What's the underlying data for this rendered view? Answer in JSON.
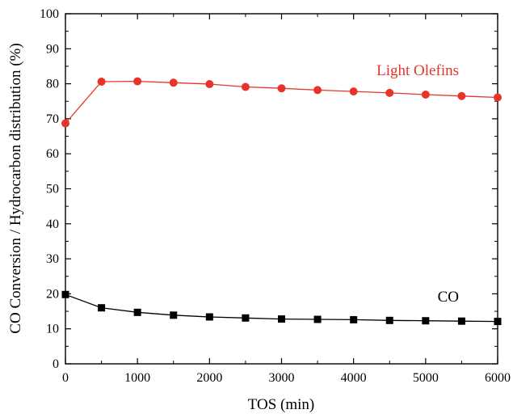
{
  "chart_data": {
    "type": "line",
    "title": "",
    "xlabel": "TOS (min)",
    "ylabel": "CO Conversion / Hydrocarbon distribution (%)",
    "xlim": [
      0,
      6000
    ],
    "ylim": [
      0,
      100
    ],
    "xticks": [
      0,
      1000,
      2000,
      3000,
      4000,
      5000,
      6000
    ],
    "yticks": [
      0,
      10,
      20,
      30,
      40,
      50,
      60,
      70,
      80,
      90,
      100
    ],
    "grid": false,
    "x": [
      0,
      500,
      1000,
      1500,
      2000,
      2500,
      3000,
      3500,
      4000,
      4500,
      5000,
      5500,
      6000
    ],
    "series": [
      {
        "name": "Light Olefins",
        "color": "#e8332b",
        "marker": "circle",
        "values": [
          68.7,
          80.6,
          80.7,
          80.3,
          79.9,
          79.1,
          78.7,
          78.2,
          77.8,
          77.4,
          76.9,
          76.5,
          76.1
        ]
      },
      {
        "name": "CO",
        "color": "#000000",
        "marker": "square",
        "values": [
          19.8,
          16.0,
          14.7,
          13.9,
          13.4,
          13.1,
          12.8,
          12.7,
          12.6,
          12.4,
          12.3,
          12.2,
          12.1
        ]
      }
    ]
  }
}
